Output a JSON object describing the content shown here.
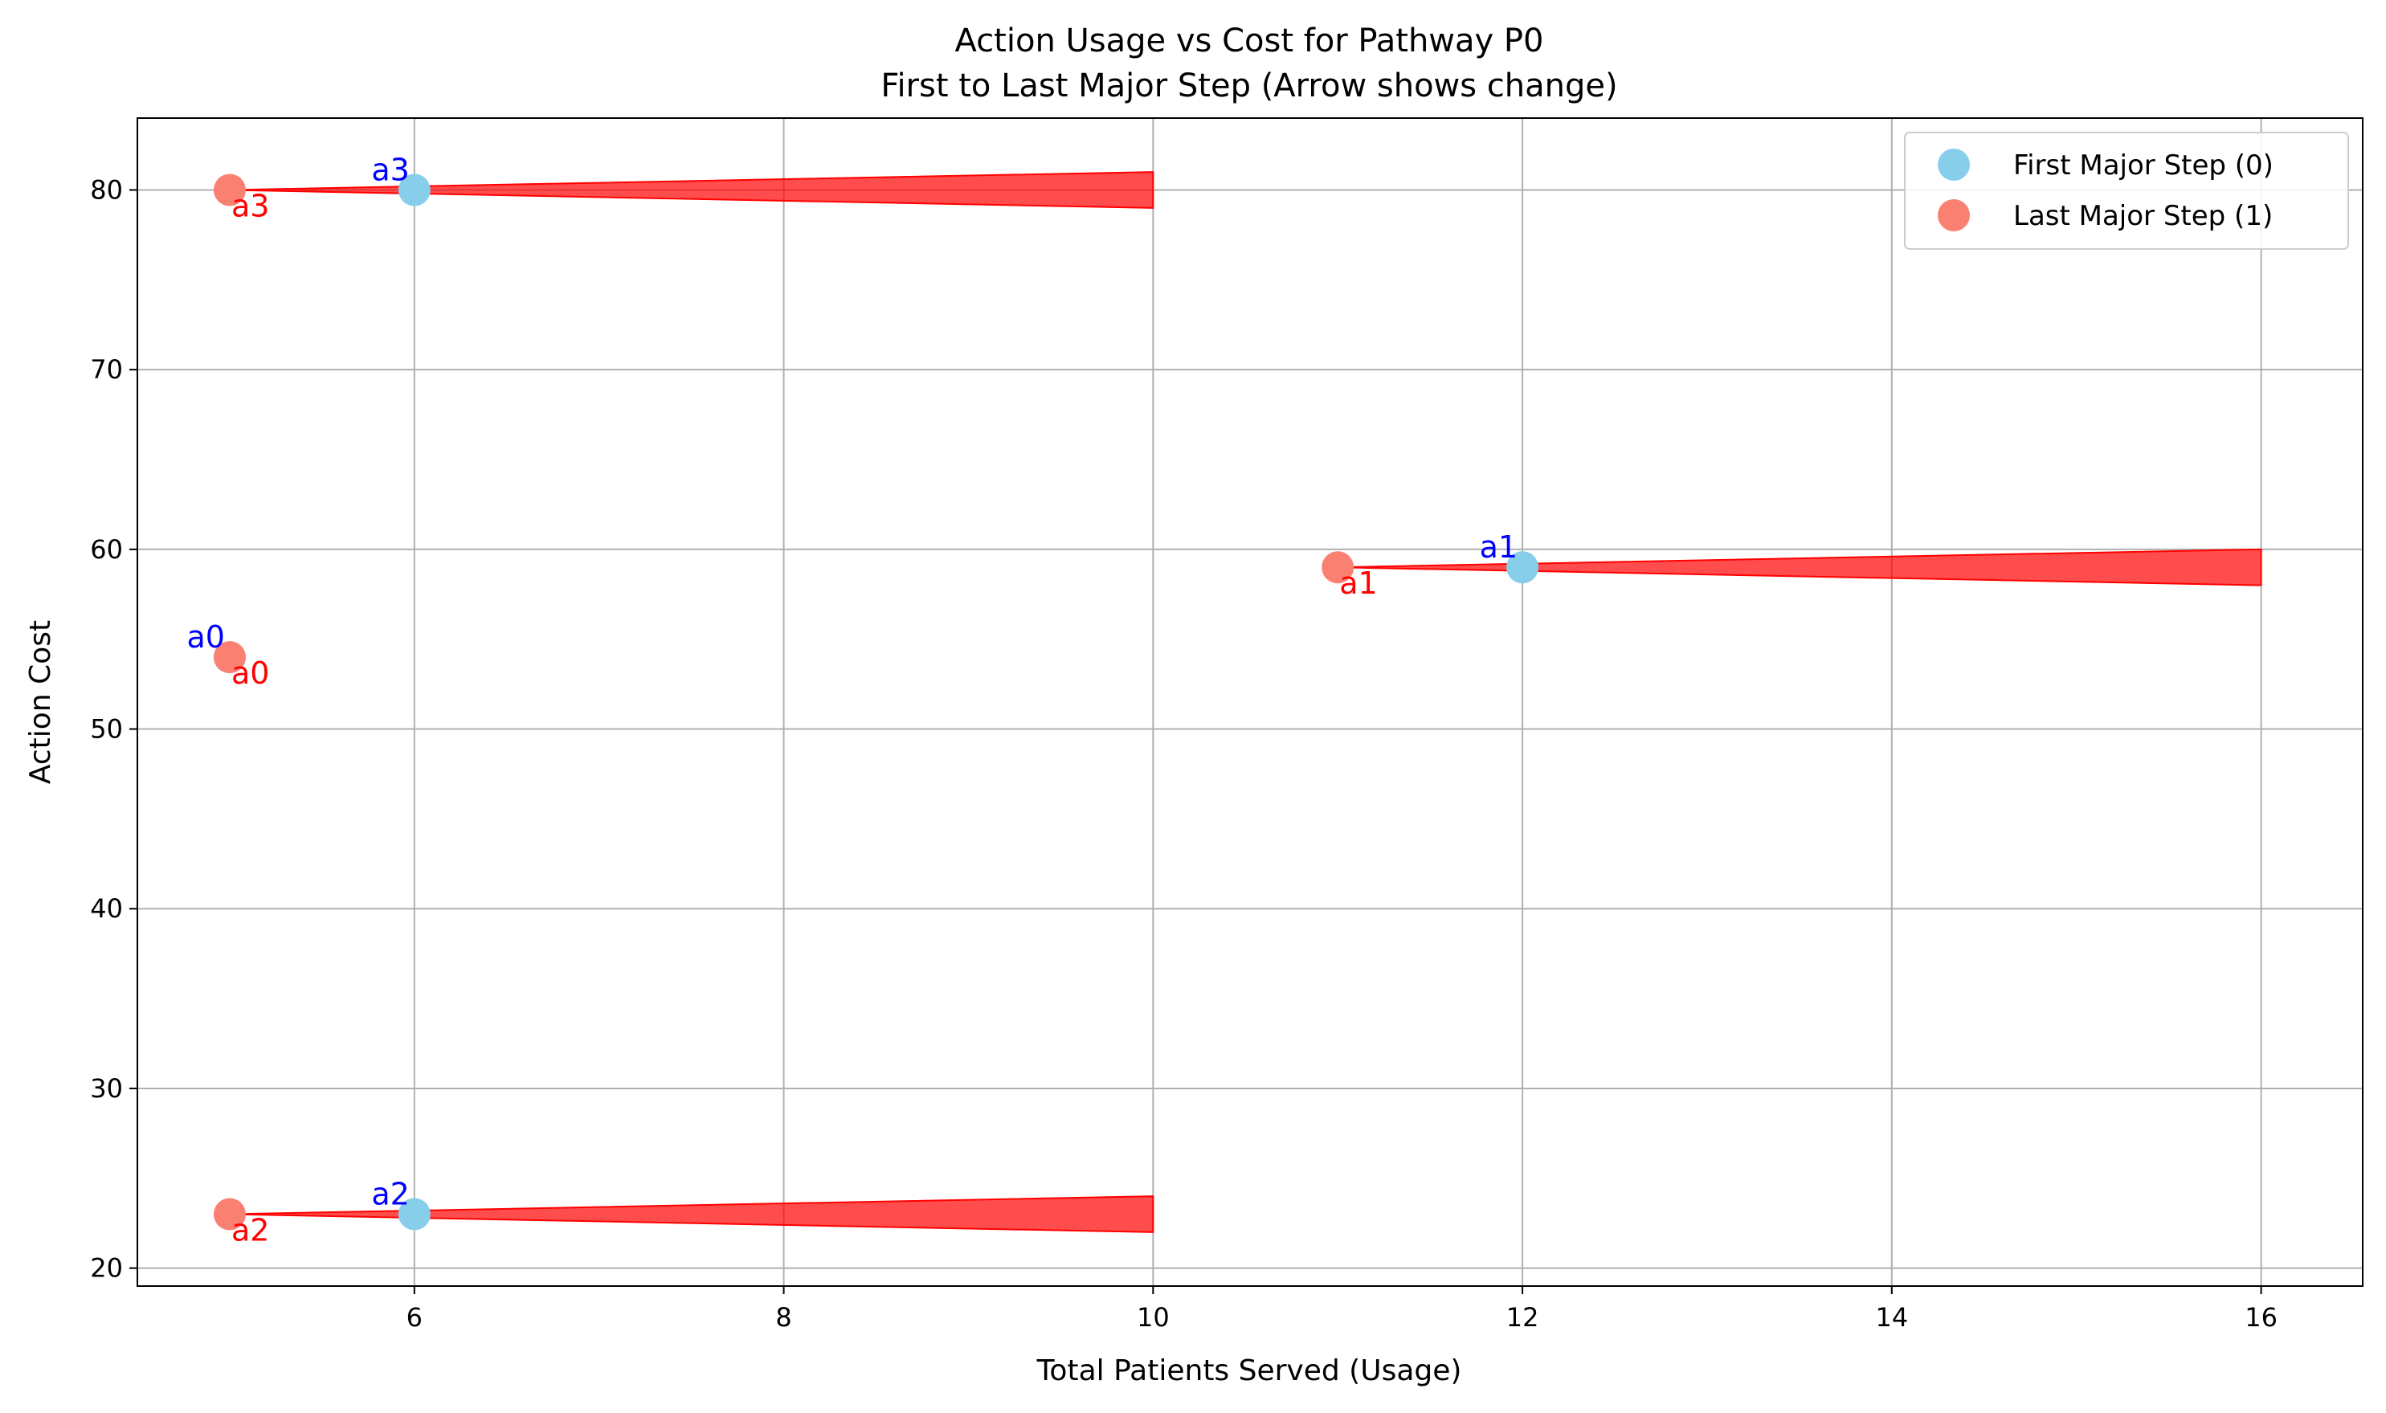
{
  "chart_data": {
    "type": "scatter",
    "title": "Action Usage vs Cost for Pathway P0",
    "subtitle": "First to Last Major Step (Arrow shows change)",
    "xlabel": "Total Patients Served (Usage)",
    "ylabel": "Action Cost",
    "xlim": [
      4.5,
      16.55
    ],
    "ylim": [
      19,
      84
    ],
    "xticks": [
      6,
      8,
      10,
      12,
      14,
      16
    ],
    "yticks": [
      20,
      30,
      40,
      50,
      60,
      70,
      80
    ],
    "grid": true,
    "legend_position": "top-right",
    "colors": {
      "first": "#87ceeb",
      "last": "#fa8072",
      "first_label": "#0000ff",
      "last_label": "#ff0000",
      "arrow": "#ff0000"
    },
    "series": [
      {
        "name": "First Major Step (0)",
        "points": [
          {
            "label": "a0",
            "x": 5,
            "y": 54
          },
          {
            "label": "a1",
            "x": 12,
            "y": 59
          },
          {
            "label": "a2",
            "x": 6,
            "y": 23
          },
          {
            "label": "a3",
            "x": 6,
            "y": 80
          }
        ]
      },
      {
        "name": "Last Major Step (1)",
        "points": [
          {
            "label": "a0",
            "x": 5,
            "y": 54
          },
          {
            "label": "a1",
            "x": 11,
            "y": 59
          },
          {
            "label": "a2",
            "x": 5,
            "y": 23
          },
          {
            "label": "a3",
            "x": 5,
            "y": 80
          }
        ]
      }
    ],
    "arrows": [
      {
        "label": "a1",
        "tail_x": 11,
        "head_x": 16,
        "y": 59,
        "head_half_height": 1
      },
      {
        "label": "a2",
        "tail_x": 5,
        "head_x": 10,
        "y": 23,
        "head_half_height": 1
      },
      {
        "label": "a3",
        "tail_x": 5,
        "head_x": 10,
        "y": 80,
        "head_half_height": 1
      }
    ]
  }
}
